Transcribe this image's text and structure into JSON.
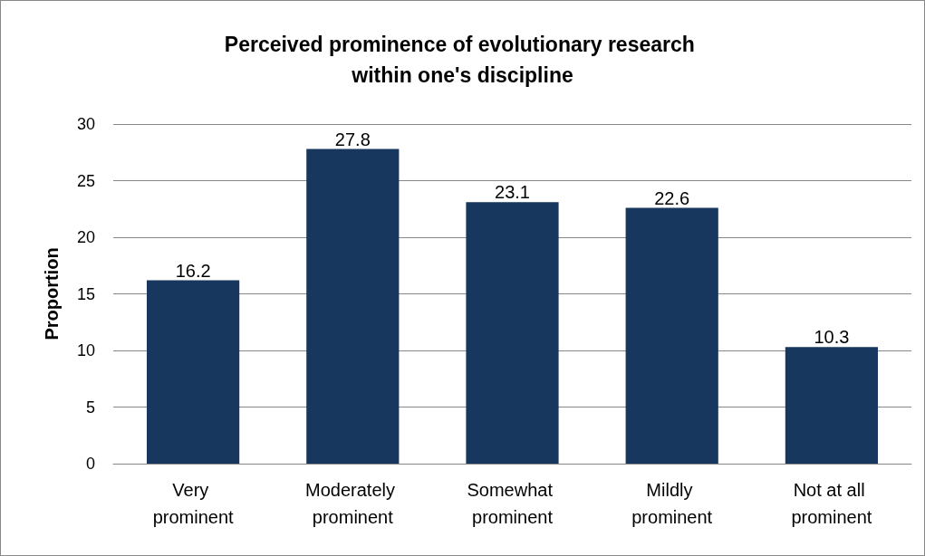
{
  "chart_data": {
    "type": "bar",
    "title": "Perceived prominence of evolutionary research within one's discipline",
    "ylabel": "Proportion",
    "categories": [
      "Very prominent",
      "Moderately prominent",
      "Somewhat prominent",
      "Mildly prominent",
      "Not at all prominent"
    ],
    "values": [
      16.2,
      27.8,
      23.1,
      22.6,
      10.3
    ],
    "color": "#17375e",
    "ylim": [
      0,
      30
    ],
    "yticks": [
      0,
      5,
      10,
      15,
      20,
      25,
      30
    ],
    "grid": "y",
    "data_labels": true
  }
}
